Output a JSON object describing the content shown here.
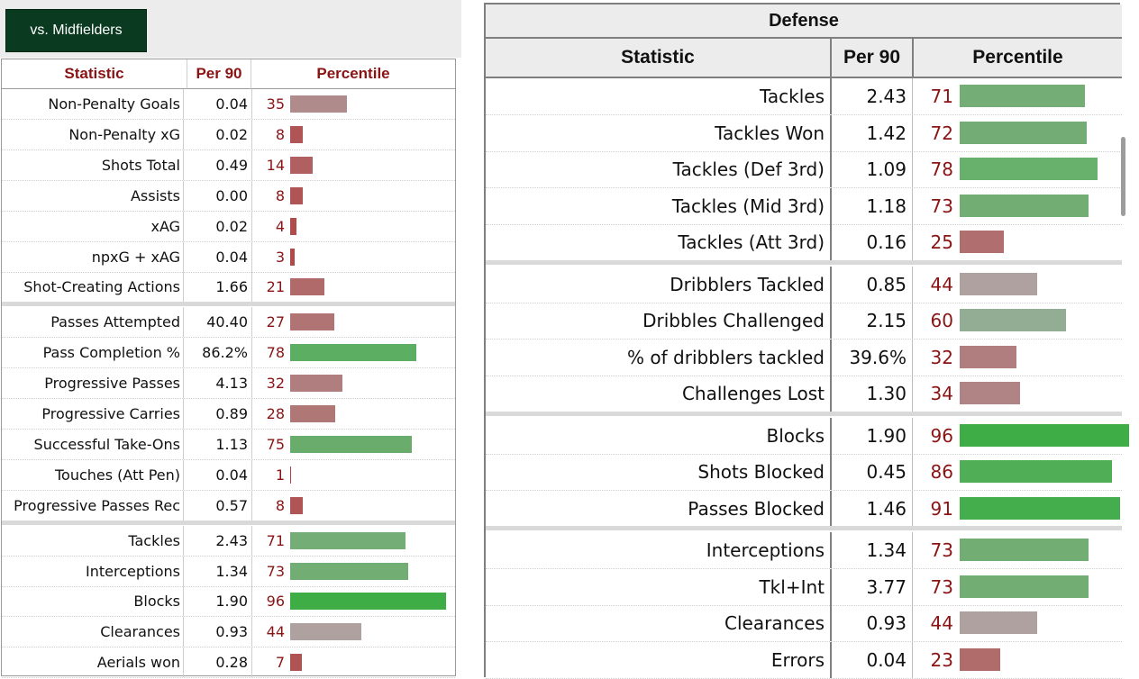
{
  "filter": {
    "label": "vs. Midfielders"
  },
  "left_table": {
    "headers": {
      "statistic": "Statistic",
      "per90": "Per 90",
      "percentile": "Percentile"
    },
    "groups": [
      [
        {
          "stat": "Non-Penalty Goals",
          "per90": "0.04",
          "pct": "35",
          "pct_value": 35,
          "color": "#b08b8b"
        },
        {
          "stat": "Non-Penalty xG",
          "per90": "0.02",
          "pct": "8",
          "pct_value": 8,
          "color": "#b05555"
        },
        {
          "stat": "Shots Total",
          "per90": "0.49",
          "pct": "14",
          "pct_value": 14,
          "color": "#b06060"
        },
        {
          "stat": "Assists",
          "per90": "0.00",
          "pct": "8",
          "pct_value": 8,
          "color": "#b05555"
        },
        {
          "stat": "xAG",
          "per90": "0.02",
          "pct": "4",
          "pct_value": 4,
          "color": "#b04c4c"
        },
        {
          "stat": "npxG + xAG",
          "per90": "0.04",
          "pct": "3",
          "pct_value": 3,
          "color": "#b04a4a"
        },
        {
          "stat": "Shot-Creating Actions",
          "per90": "1.66",
          "pct": "21",
          "pct_value": 21,
          "color": "#b06a6a"
        }
      ],
      [
        {
          "stat": "Passes Attempted",
          "per90": "40.40",
          "pct": "27",
          "pct_value": 27,
          "color": "#b07474"
        },
        {
          "stat": "Pass Completion %",
          "per90": "86.2%",
          "pct": "78",
          "pct_value": 78,
          "color": "#5cae62"
        },
        {
          "stat": "Progressive Passes",
          "per90": "4.13",
          "pct": "32",
          "pct_value": 32,
          "color": "#b07e7e"
        },
        {
          "stat": "Progressive Carries",
          "per90": "0.89",
          "pct": "28",
          "pct_value": 28,
          "color": "#b07777"
        },
        {
          "stat": "Successful Take-Ons",
          "per90": "1.13",
          "pct": "75",
          "pct_value": 75,
          "color": "#69ac6c"
        },
        {
          "stat": "Touches (Att Pen)",
          "per90": "0.04",
          "pct": "1",
          "pct_value": 1,
          "color": "#b04545"
        },
        {
          "stat": "Progressive Passes Rec",
          "per90": "0.57",
          "pct": "8",
          "pct_value": 8,
          "color": "#b05555"
        }
      ],
      [
        {
          "stat": "Tackles",
          "per90": "2.43",
          "pct": "71",
          "pct_value": 71,
          "color": "#75ad77"
        },
        {
          "stat": "Interceptions",
          "per90": "1.34",
          "pct": "73",
          "pct_value": 73,
          "color": "#72ad74"
        },
        {
          "stat": "Blocks",
          "per90": "1.90",
          "pct": "96",
          "pct_value": 96,
          "color": "#3ead45"
        },
        {
          "stat": "Clearances",
          "per90": "0.93",
          "pct": "44",
          "pct_value": 44,
          "color": "#b0a1a1"
        },
        {
          "stat": "Aerials won",
          "per90": "0.28",
          "pct": "7",
          "pct_value": 7,
          "color": "#b05353"
        }
      ]
    ]
  },
  "defense_table": {
    "title": "Defense",
    "headers": {
      "statistic": "Statistic",
      "per90": "Per 90",
      "percentile": "Percentile"
    },
    "groups": [
      [
        {
          "stat": "Tackles",
          "per90": "2.43",
          "pct": "71",
          "pct_value": 71,
          "color": "#75ad77"
        },
        {
          "stat": "Tackles Won",
          "per90": "1.42",
          "pct": "72",
          "pct_value": 72,
          "color": "#73ad75"
        },
        {
          "stat": "Tackles (Def 3rd)",
          "per90": "1.09",
          "pct": "78",
          "pct_value": 78,
          "color": "#68b16c"
        },
        {
          "stat": "Tackles (Mid 3rd)",
          "per90": "1.18",
          "pct": "73",
          "pct_value": 73,
          "color": "#72ad74"
        },
        {
          "stat": "Tackles (Att 3rd)",
          "per90": "0.16",
          "pct": "25",
          "pct_value": 25,
          "color": "#b06e6e"
        }
      ],
      [
        {
          "stat": "Dribblers Tackled",
          "per90": "0.85",
          "pct": "44",
          "pct_value": 44,
          "color": "#b0a1a1"
        },
        {
          "stat": "Dribbles Challenged",
          "per90": "2.15",
          "pct": "60",
          "pct_value": 60,
          "color": "#93ad94"
        },
        {
          "stat": "% of dribblers tackled",
          "per90": "39.6%",
          "pct": "32",
          "pct_value": 32,
          "color": "#b07e7e"
        },
        {
          "stat": "Challenges Lost",
          "per90": "1.30",
          "pct": "34",
          "pct_value": 34,
          "color": "#b08484"
        }
      ],
      [
        {
          "stat": "Blocks",
          "per90": "1.90",
          "pct": "96",
          "pct_value": 96,
          "color": "#3ead45"
        },
        {
          "stat": "Shots Blocked",
          "per90": "0.45",
          "pct": "86",
          "pct_value": 86,
          "color": "#4fae56"
        },
        {
          "stat": "Passes Blocked",
          "per90": "1.46",
          "pct": "91",
          "pct_value": 91,
          "color": "#45ae4c"
        }
      ],
      [
        {
          "stat": "Interceptions",
          "per90": "1.34",
          "pct": "73",
          "pct_value": 73,
          "color": "#72ad74"
        },
        {
          "stat": "Tkl+Int",
          "per90": "3.77",
          "pct": "73",
          "pct_value": 73,
          "color": "#72ad74"
        },
        {
          "stat": "Clearances",
          "per90": "0.93",
          "pct": "44",
          "pct_value": 44,
          "color": "#b0a1a1"
        },
        {
          "stat": "Errors",
          "per90": "0.04",
          "pct": "23",
          "pct_value": 23,
          "color": "#b06b6b"
        }
      ]
    ]
  }
}
